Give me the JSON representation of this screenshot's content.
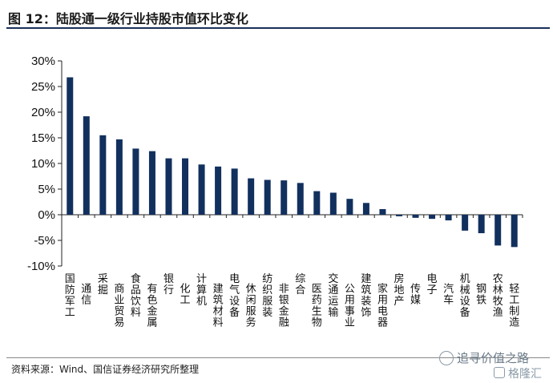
{
  "figure": {
    "title": "图 12：陆股通一级行业持股市值环比变化",
    "source": "资料来源：Wind、国信证券经济研究所整理"
  },
  "watermark": {
    "name": "追寻价值之路",
    "brand": "格隆汇"
  },
  "chart_data": {
    "type": "bar",
    "title": "",
    "xlabel": "",
    "ylabel": "",
    "ylim": [
      -10,
      30
    ],
    "y_ticks": [
      -10,
      -5,
      0,
      5,
      10,
      15,
      20,
      25,
      30
    ],
    "y_tick_labels": [
      "-10%",
      "-5%",
      "0%",
      "5%",
      "10%",
      "15%",
      "20%",
      "25%",
      "30%"
    ],
    "y_unit": "%",
    "grid": false,
    "legend": "none",
    "bar_color": "#12305e",
    "categories": [
      "国防军工",
      "通信",
      "采掘",
      "商业贸易",
      "食品饮料",
      "有色金属",
      "银行",
      "化工",
      "计算机",
      "建筑材料",
      "电气设备",
      "休闲服务",
      "纺织服装",
      "非银金融",
      "综合",
      "医药生物",
      "交通运输",
      "公用事业",
      "建筑装饰",
      "家用电器",
      "房地产",
      "传媒",
      "电子",
      "汽车",
      "机械设备",
      "钢铁",
      "农林牧渔",
      "轻工制造"
    ],
    "values": [
      26.8,
      19.2,
      15.5,
      14.7,
      12.9,
      12.4,
      11.0,
      11.0,
      9.8,
      9.4,
      9.0,
      7.1,
      6.8,
      6.7,
      6.2,
      4.6,
      4.3,
      3.1,
      2.3,
      1.1,
      -0.3,
      -0.6,
      -0.8,
      -1.1,
      -3.1,
      -3.6,
      -6.0,
      -6.3
    ]
  }
}
